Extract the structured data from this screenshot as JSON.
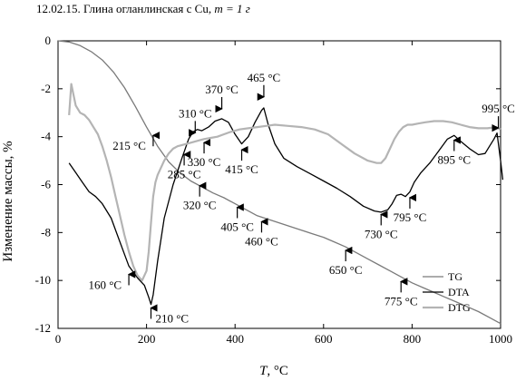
{
  "figure": {
    "caption_prefix": "12.02.15. Глина огланлинская с Cu,",
    "caption_mass": "m = 1 г"
  },
  "chart_data": {
    "type": "line",
    "xlabel": "T, °C",
    "ylabel": "Изменение массы, %",
    "xlim": [
      0,
      1000
    ],
    "ylim": [
      -12,
      0
    ],
    "xticks": [
      0,
      200,
      400,
      600,
      800,
      1000
    ],
    "yticks": [
      0,
      -2,
      -4,
      -6,
      -8,
      -10,
      -12
    ],
    "grid": false,
    "legend_position": "bottom-right",
    "series": [
      {
        "name": "TG",
        "color": "#7a7a7a",
        "x": [
          0,
          25,
          50,
          75,
          100,
          125,
          150,
          175,
          200,
          225,
          250,
          275,
          300,
          325,
          350,
          375,
          400,
          425,
          450,
          475,
          500,
          525,
          550,
          575,
          600,
          625,
          650,
          675,
          700,
          725,
          750,
          775,
          800,
          825,
          850,
          875,
          900,
          925,
          950,
          975,
          1000
        ],
        "y": [
          0,
          -0.05,
          -0.2,
          -0.45,
          -0.8,
          -1.3,
          -1.95,
          -2.75,
          -3.6,
          -4.4,
          -5.05,
          -5.5,
          -5.85,
          -6.1,
          -6.35,
          -6.55,
          -6.8,
          -7.05,
          -7.3,
          -7.45,
          -7.6,
          -7.75,
          -7.9,
          -8.05,
          -8.2,
          -8.4,
          -8.6,
          -8.85,
          -9.1,
          -9.35,
          -9.6,
          -9.85,
          -10.1,
          -10.3,
          -10.5,
          -10.7,
          -10.9,
          -11.1,
          -11.3,
          -11.55,
          -11.8
        ]
      },
      {
        "name": "DTA",
        "color": "#000000",
        "x": [
          25,
          40,
          55,
          70,
          85,
          100,
          120,
          140,
          160,
          180,
          195,
          205,
          210,
          215,
          225,
          240,
          260,
          280,
          295,
          305,
          315,
          325,
          340,
          355,
          370,
          385,
          400,
          415,
          430,
          445,
          460,
          465,
          475,
          490,
          510,
          540,
          570,
          600,
          630,
          660,
          690,
          715,
          730,
          745,
          755,
          765,
          775,
          785,
          795,
          805,
          820,
          840,
          860,
          880,
          895,
          910,
          930,
          950,
          965,
          975,
          985,
          992,
          995,
          1000,
          1005
        ],
        "y": [
          -5.1,
          -5.5,
          -5.9,
          -6.3,
          -6.5,
          -6.8,
          -7.4,
          -8.4,
          -9.4,
          -9.9,
          -10.2,
          -10.7,
          -11.0,
          -10.6,
          -9.2,
          -7.4,
          -6.0,
          -4.9,
          -4.1,
          -3.8,
          -3.7,
          -3.75,
          -3.6,
          -3.35,
          -3.25,
          -3.4,
          -3.9,
          -4.3,
          -4.0,
          -3.4,
          -2.9,
          -2.8,
          -3.5,
          -4.3,
          -4.9,
          -5.25,
          -5.55,
          -5.85,
          -6.15,
          -6.5,
          -6.9,
          -7.1,
          -7.15,
          -7.05,
          -6.8,
          -6.45,
          -6.4,
          -6.5,
          -6.3,
          -5.9,
          -5.5,
          -5.1,
          -4.6,
          -4.1,
          -3.95,
          -4.2,
          -4.5,
          -4.75,
          -4.7,
          -4.4,
          -4.1,
          -3.85,
          -4.3,
          -5.0,
          -5.8
        ]
      },
      {
        "name": "DTG",
        "color": "#b4b4b4",
        "x": [
          25,
          30,
          40,
          50,
          60,
          70,
          80,
          90,
          100,
          110,
          120,
          130,
          140,
          150,
          160,
          170,
          180,
          190,
          200,
          205,
          210,
          215,
          220,
          225,
          230,
          240,
          250,
          260,
          270,
          280,
          290,
          300,
          310,
          320,
          330,
          345,
          360,
          375,
          390,
          410,
          430,
          450,
          470,
          490,
          520,
          550,
          580,
          610,
          640,
          670,
          700,
          720,
          730,
          740,
          750,
          760,
          770,
          780,
          790,
          800,
          815,
          830,
          850,
          870,
          890,
          910,
          930,
          950,
          970,
          990,
          1000
        ],
        "y": [
          -3.1,
          -1.8,
          -2.7,
          -3.0,
          -3.1,
          -3.3,
          -3.6,
          -3.9,
          -4.4,
          -5.0,
          -5.7,
          -6.5,
          -7.3,
          -8.1,
          -8.8,
          -9.4,
          -9.8,
          -10.0,
          -9.6,
          -8.8,
          -7.6,
          -6.5,
          -5.9,
          -5.6,
          -5.4,
          -5.0,
          -4.7,
          -4.5,
          -4.4,
          -4.35,
          -4.3,
          -4.25,
          -4.2,
          -4.15,
          -4.1,
          -4.05,
          -4.0,
          -3.9,
          -3.8,
          -3.7,
          -3.65,
          -3.6,
          -3.55,
          -3.5,
          -3.55,
          -3.6,
          -3.7,
          -3.9,
          -4.3,
          -4.7,
          -5.0,
          -5.1,
          -5.1,
          -4.9,
          -4.5,
          -4.1,
          -3.8,
          -3.6,
          -3.5,
          -3.5,
          -3.45,
          -3.4,
          -3.35,
          -3.35,
          -3.4,
          -3.5,
          -3.6,
          -3.65,
          -3.65,
          -3.6,
          -3.7
        ]
      }
    ],
    "annotations": [
      {
        "text": "160 °C",
        "x": 160,
        "y": -10.2,
        "pos": "left"
      },
      {
        "text": "210 °C",
        "x": 210,
        "y": -11.6,
        "pos": "right"
      },
      {
        "text": "215 °C",
        "x": 215,
        "y": -4.4,
        "pos": "left"
      },
      {
        "text": "285 °C",
        "x": 285,
        "y": -5.2,
        "pos": "below"
      },
      {
        "text": "310 °C",
        "x": 310,
        "y": -3.8,
        "pos": "above"
      },
      {
        "text": "320 °C",
        "x": 320,
        "y": -6.5,
        "pos": "below"
      },
      {
        "text": "330 °C",
        "x": 330,
        "y": -4.7,
        "pos": "below"
      },
      {
        "text": "370 °C",
        "x": 370,
        "y": -2.8,
        "pos": "above"
      },
      {
        "text": "405 °C",
        "x": 405,
        "y": -7.4,
        "pos": "below"
      },
      {
        "text": "415 °C",
        "x": 415,
        "y": -5.0,
        "pos": "below"
      },
      {
        "text": "460 °C",
        "x": 460,
        "y": -8.0,
        "pos": "below"
      },
      {
        "text": "465 °C",
        "x": 465,
        "y": -2.3,
        "pos": "above"
      },
      {
        "text": "650 °C",
        "x": 650,
        "y": -9.2,
        "pos": "below"
      },
      {
        "text": "730 °C",
        "x": 730,
        "y": -7.7,
        "pos": "below"
      },
      {
        "text": "775 °C",
        "x": 775,
        "y": -10.5,
        "pos": "below"
      },
      {
        "text": "795 °C",
        "x": 795,
        "y": -7.0,
        "pos": "below"
      },
      {
        "text": "895 °C",
        "x": 895,
        "y": -4.6,
        "pos": "below"
      },
      {
        "text": "995 °C",
        "x": 995,
        "y": -3.6,
        "pos": "above"
      }
    ]
  }
}
